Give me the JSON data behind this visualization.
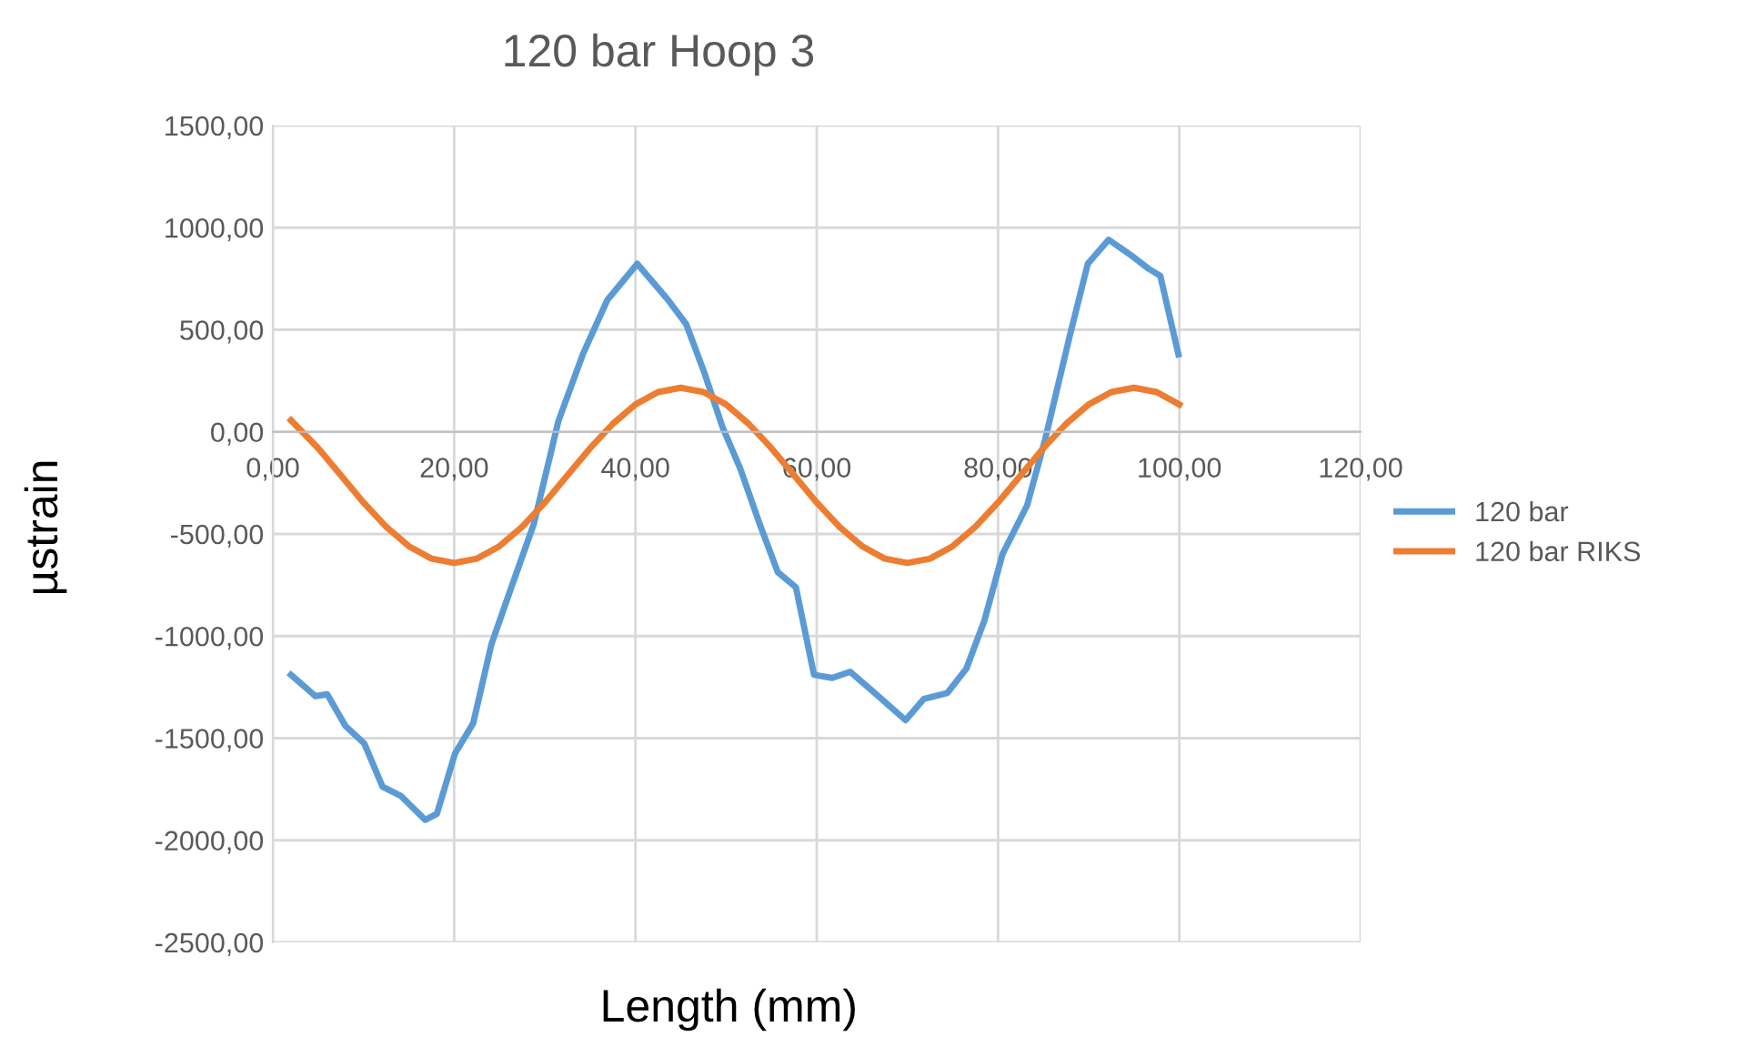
{
  "chart_data": {
    "type": "line",
    "title": "120 bar Hoop 3",
    "xlabel": "Length (mm)",
    "ylabel": "µstrain",
    "xlim": [
      0,
      120
    ],
    "ylim": [
      -2500,
      1500
    ],
    "xticks": [
      {
        "value": 0,
        "label": "0,00"
      },
      {
        "value": 20,
        "label": "20,00"
      },
      {
        "value": 40,
        "label": "40,00"
      },
      {
        "value": 60,
        "label": "60,00"
      },
      {
        "value": 80,
        "label": "80,00"
      },
      {
        "value": 100,
        "label": "100,00"
      },
      {
        "value": 120,
        "label": "120,00"
      }
    ],
    "yticks": [
      {
        "value": -2500,
        "label": "-2500,00"
      },
      {
        "value": -2000,
        "label": "-2000,00"
      },
      {
        "value": -1500,
        "label": "-1500,00"
      },
      {
        "value": -1000,
        "label": "-1000,00"
      },
      {
        "value": -500,
        "label": "-500,00"
      },
      {
        "value": 0,
        "label": "0,00"
      },
      {
        "value": 500,
        "label": "500,00"
      },
      {
        "value": 1000,
        "label": "1000,00"
      },
      {
        "value": 1500,
        "label": "1500,00"
      }
    ],
    "grid": true,
    "legend": "right",
    "marker": "none",
    "line_style": "solid",
    "series": [
      {
        "name": "120 bar",
        "color": "#5b9bd5",
        "x": [
          2,
          4.7,
          6,
          8,
          10.1,
          12.1,
          14.1,
          16.8,
          18.1,
          20.1,
          22.1,
          24.1,
          26.2,
          28.8,
          31.5,
          34.2,
          36.9,
          40.2,
          43.6,
          45.6,
          47.6,
          49.6,
          51.6,
          53.7,
          55.7,
          57.7,
          59.7,
          61.7,
          63.7,
          66.4,
          69.8,
          71.8,
          74.4,
          76.5,
          78.5,
          80.5,
          83.2,
          85.2,
          87.9,
          89.9,
          92.2,
          94.6,
          96.6,
          97.9,
          99.9
        ],
        "values": [
          -1190,
          -1294,
          -1285,
          -1440,
          -1527,
          -1738,
          -1782,
          -1900,
          -1870,
          -1575,
          -1427,
          -1042,
          -775,
          -450,
          53,
          380,
          646,
          823,
          646,
          527,
          290,
          24,
          -184,
          -450,
          -687,
          -761,
          -1190,
          -1205,
          -1175,
          -1279,
          -1412,
          -1308,
          -1279,
          -1160,
          -923,
          -598,
          -361,
          -36,
          468,
          823,
          941,
          867,
          799,
          764,
          379
        ]
      },
      {
        "name": "120 bar RIKS",
        "color": "#ed7d31",
        "x": [
          2,
          5,
          7.5,
          10,
          12.5,
          15,
          17.5,
          20,
          22.5,
          25,
          27.5,
          30,
          32.5,
          35,
          37.5,
          40,
          42.5,
          45,
          47.5,
          50,
          52.5,
          55,
          57.5,
          60,
          62.5,
          65,
          67.5,
          70,
          72.5,
          75,
          77.5,
          80,
          82.5,
          85,
          87.5,
          90,
          92.5,
          95,
          97.5,
          100
        ],
        "values": [
          57,
          -80,
          -213,
          -346,
          -465,
          -560,
          -621,
          -642,
          -621,
          -560,
          -465,
          -346,
          -213,
          -80,
          39,
          134,
          195,
          216,
          195,
          134,
          39,
          -80,
          -213,
          -346,
          -465,
          -560,
          -621,
          -642,
          -621,
          -560,
          -465,
          -346,
          -213,
          -80,
          39,
          134,
          195,
          216,
          195,
          134
        ]
      }
    ]
  }
}
